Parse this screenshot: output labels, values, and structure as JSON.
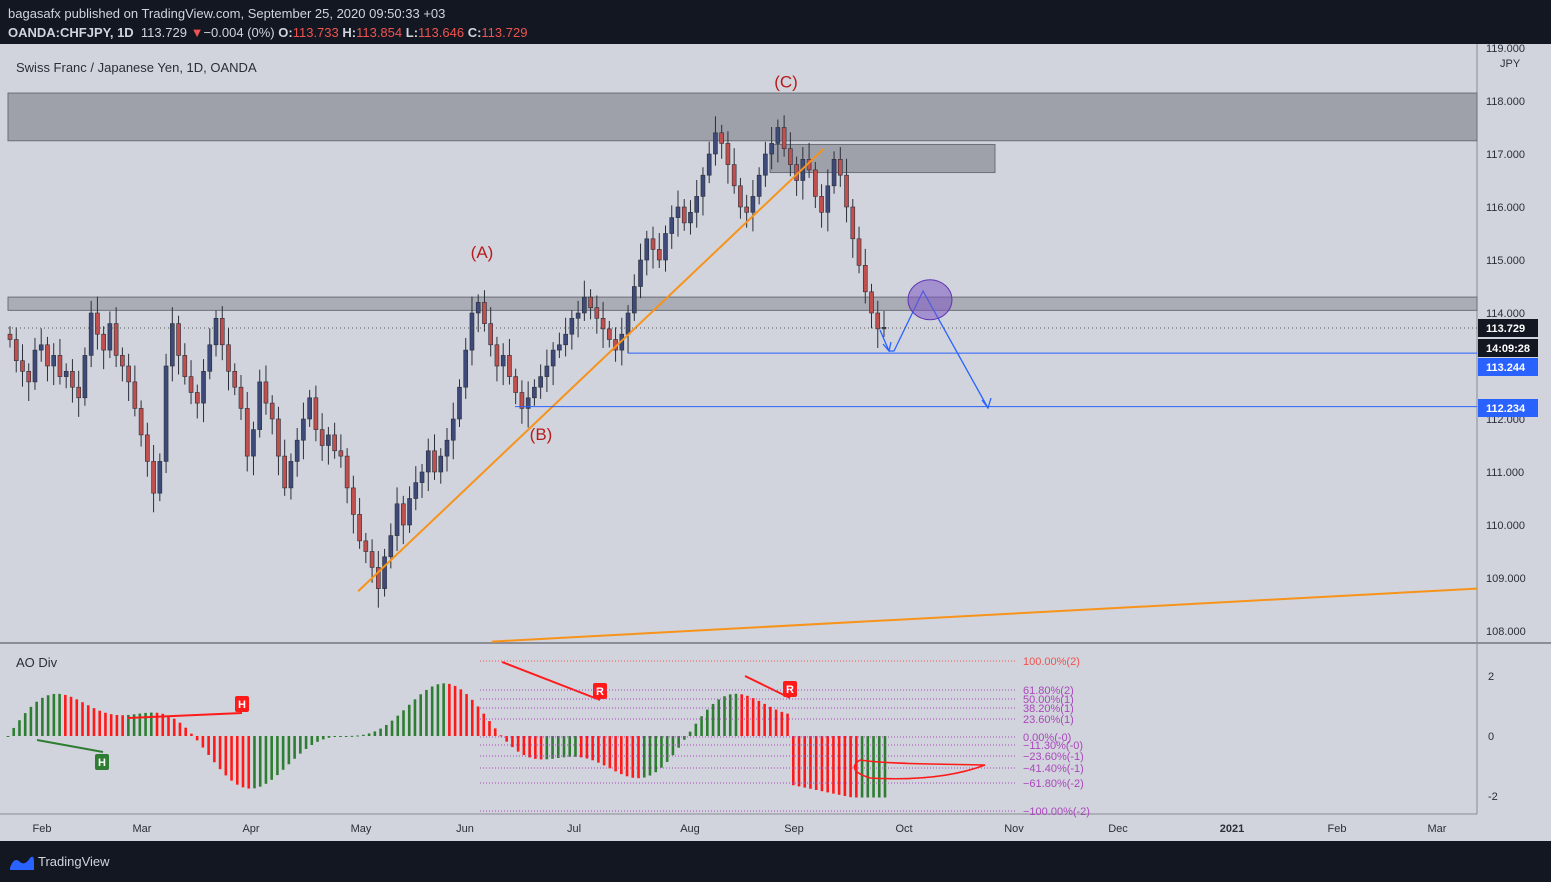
{
  "header": {
    "publisher": "bagasafx published on TradingView.com, September 25, 2020 09:50:33 +03",
    "symbol": "OANDA:CHFJPY, 1D",
    "last": "113.729",
    "change_arrow": "▼",
    "change": "−0.004 (0%)",
    "o_label": "O:",
    "o": "113.733",
    "h_label": "H:",
    "h": "113.854",
    "l_label": "L:",
    "l": "113.646",
    "c_label": "C:",
    "c": "113.729"
  },
  "main_pane": {
    "title": "Swiss Franc / Japanese Yen, 1D, OANDA",
    "currency": "JPY",
    "price_ticks": [
      "119.000",
      "118.000",
      "117.000",
      "116.000",
      "115.000",
      "114.000",
      "112.000",
      "111.000",
      "110.000",
      "109.000",
      "108.000"
    ],
    "last_price_label": "113.729",
    "countdown_label": "14:09:28",
    "level1_label": "113.244",
    "level2_label": "112.234",
    "wave_labels": {
      "a": "(A)",
      "b": "(B)",
      "c": "(C)"
    }
  },
  "indicator_pane": {
    "title": "AO Div",
    "y_ticks": [
      "2",
      "0",
      "-2"
    ],
    "fib_labels": [
      "100.00%(2)",
      "61.80%(2)",
      "50.00%(1)",
      "38.20%(1)",
      "23.60%(1)",
      "0.00%(-0)",
      "−11.30%(-0)",
      "−23.60%(-1)",
      "−41.40%(-1)",
      "−61.80%(-2)",
      "−100.00%(-2)"
    ],
    "div_markers": [
      "H",
      "H",
      "R",
      "R"
    ]
  },
  "time_axis": {
    "labels": [
      "Feb",
      "Mar",
      "Apr",
      "May",
      "Jun",
      "Jul",
      "Aug",
      "Sep",
      "Oct",
      "Nov",
      "Dec",
      "2021",
      "Feb",
      "Mar"
    ]
  },
  "footer": {
    "brand": "TradingView"
  },
  "colors": {
    "bg": "#d1d4dc",
    "up": "#26a69a",
    "down": "#ef5350",
    "candle_body": "#3d4a7a",
    "zone": "#9598a1",
    "trend": "#f7931a",
    "projection": "#2962ff",
    "wave": "#b71c1c",
    "ao_up": "#2e7d32",
    "ao_down": "#ff1a1a",
    "fib": "#ab47bc"
  },
  "chart_data": {
    "type": "candlestick",
    "symbol": "CHFJPY",
    "interval": "1D",
    "y_range": [
      108,
      119
    ],
    "zones": [
      {
        "from": 117.25,
        "to": 118.15
      },
      {
        "from": 114.05,
        "to": 114.3
      },
      {
        "from": 116.65,
        "to": 117.18
      }
    ],
    "horizontal_levels": [
      113.244,
      112.234
    ],
    "waves": [
      {
        "label": "(A)",
        "price": 114.7
      },
      {
        "label": "(B)",
        "price": 111.6
      },
      {
        "label": "(C)",
        "price": 117.9
      }
    ],
    "trendlines": [
      {
        "from": [
          "2020-05-04",
          108.75
        ],
        "to": [
          "2020-09-10",
          117.1
        ]
      },
      {
        "from": [
          "2020-06-10",
          107.8
        ],
        "to": [
          "2021-03-31",
          108.8
        ]
      }
    ],
    "target_circle": {
      "price": 114.25
    },
    "closes": [
      113.5,
      113.1,
      112.9,
      112.7,
      113.3,
      113.4,
      113.0,
      113.2,
      112.8,
      112.9,
      112.6,
      112.4,
      113.2,
      114.0,
      113.6,
      113.3,
      113.8,
      113.2,
      113.0,
      112.7,
      112.2,
      111.7,
      111.2,
      110.6,
      111.2,
      113.0,
      113.8,
      113.2,
      112.8,
      112.5,
      112.3,
      112.9,
      113.4,
      113.9,
      113.4,
      112.9,
      112.6,
      112.2,
      111.3,
      111.8,
      112.7,
      112.3,
      112.0,
      111.3,
      110.7,
      111.2,
      111.6,
      112.0,
      112.4,
      111.8,
      111.5,
      111.7,
      111.4,
      111.3,
      110.7,
      110.2,
      109.7,
      109.5,
      109.2,
      108.8,
      109.4,
      109.8,
      110.4,
      110.0,
      110.5,
      110.8,
      111.0,
      111.4,
      111.0,
      111.3,
      111.6,
      112.0,
      112.6,
      113.3,
      114.0,
      114.2,
      113.8,
      113.4,
      113.0,
      113.2,
      112.8,
      112.5,
      112.2,
      112.4,
      112.6,
      112.8,
      113.0,
      113.3,
      113.4,
      113.6,
      113.9,
      114.0,
      114.3,
      114.1,
      113.9,
      113.7,
      113.5,
      113.3,
      113.6,
      114.0,
      114.5,
      115.0,
      115.4,
      115.2,
      115.0,
      115.5,
      115.8,
      116.0,
      115.7,
      115.9,
      116.2,
      116.6,
      117.0,
      117.4,
      117.2,
      116.8,
      116.4,
      116.0,
      115.9,
      116.2,
      116.6,
      117.0,
      117.2,
      117.5,
      117.1,
      116.8,
      116.5,
      116.9,
      116.7,
      116.2,
      115.9,
      116.4,
      116.9,
      116.6,
      116.0,
      115.4,
      114.9,
      114.4,
      114.0,
      113.7,
      113.73
    ],
    "ao_range": [
      -2.1,
      2.7
    ]
  }
}
